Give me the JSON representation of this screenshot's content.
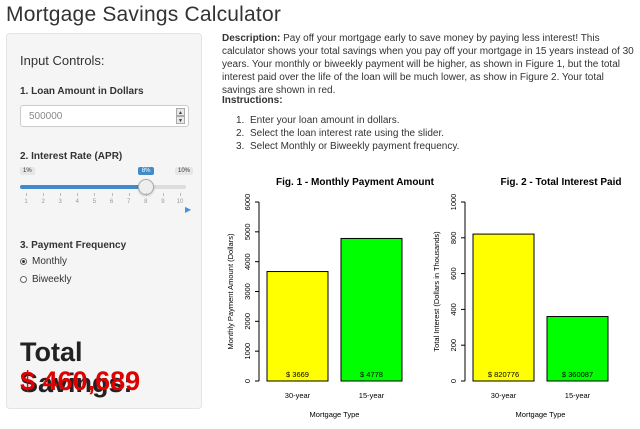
{
  "app": {
    "title": "Mortgage Savings Calculator"
  },
  "sidebar": {
    "heading": "Input Controls:",
    "loan": {
      "label": "1. Loan Amount in Dollars",
      "value": "500000"
    },
    "rate": {
      "label": "2. Interest Rate (APR)",
      "min_label": "1%",
      "max_label": "10%",
      "value_label": "8%",
      "min": 1,
      "max": 10,
      "value": 8,
      "ticks": [
        "1",
        "2",
        "3",
        "4",
        "5",
        "6",
        "7",
        "8",
        "9",
        "10"
      ]
    },
    "frequency": {
      "label": "3. Payment Frequency",
      "options": [
        "Monthly",
        "Biweekly"
      ],
      "selected": "Monthly"
    },
    "savings": {
      "label": "Total Savings:",
      "value": "$ 460,689"
    }
  },
  "main": {
    "description_head": "Description:",
    "description_body": "Pay off your mortgage early to save money by paying less interest! This calculator shows your total savings when you pay off your mortgage in 15 years instead of 30 years. Your monthly or biweekly payment will be higher, as shown in Figure 1, but the total interest paid over the life of the loan will be much lower, as show in Figure 2. Your total savings are shown in red.",
    "instructions_head": "Instructions:",
    "instructions": [
      "Enter your loan amount in dollars.",
      "Select the loan interest rate using the slider.",
      "Select Monthly or Biweekly payment frequency."
    ]
  },
  "colors": {
    "accent": "#428bca",
    "savings": "#e00000",
    "bar_30": "#ffff00",
    "bar_15": "#00ff00"
  },
  "chart_data": [
    {
      "type": "bar",
      "title": "Fig. 1 -  Monthly Payment Amount",
      "categories": [
        "30-year",
        "15-year"
      ],
      "values": [
        3669,
        4778
      ],
      "data_labels": [
        "$ 3669",
        "$ 4778"
      ],
      "colors": [
        "#ffff00",
        "#00ff00"
      ],
      "xlabel": "Mortgage Type",
      "ylabel": "Monthly Payment Amount (Dollars)",
      "ylim": [
        0,
        6000
      ],
      "yticks": [
        0,
        1000,
        2000,
        3000,
        4000,
        5000,
        6000
      ],
      "grid": false
    },
    {
      "type": "bar",
      "title": "Fig. 2 - Total Interest Paid",
      "categories": [
        "30-year",
        "15-year"
      ],
      "values": [
        820.776,
        360.087
      ],
      "data_labels": [
        "$ 820776",
        "$ 360087"
      ],
      "colors": [
        "#ffff00",
        "#00ff00"
      ],
      "xlabel": "Mortgage Type",
      "ylabel": "Total Interest (Dollars in Thousands)",
      "ylim": [
        0,
        1000
      ],
      "yticks": [
        0,
        200,
        400,
        600,
        800,
        1000
      ],
      "grid": false
    }
  ]
}
